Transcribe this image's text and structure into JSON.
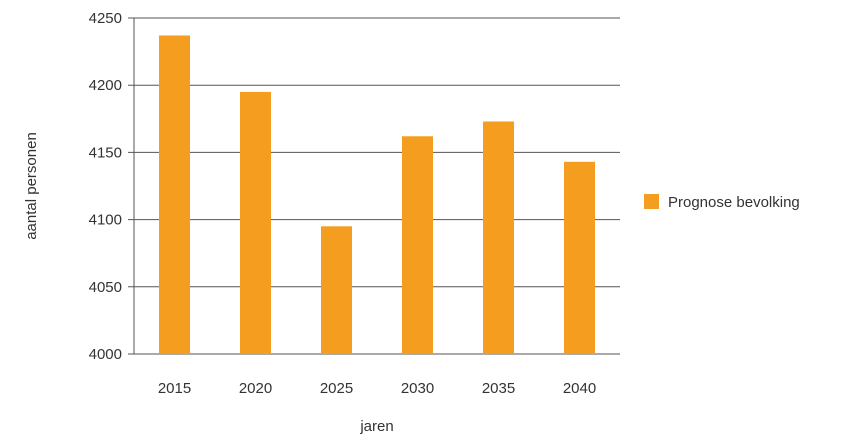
{
  "chart_data": {
    "type": "bar",
    "categories": [
      "2015",
      "2020",
      "2025",
      "2030",
      "2035",
      "2040"
    ],
    "series": [
      {
        "name": "Prognose bevolking",
        "values": [
          4237,
          4195,
          4095,
          4162,
          4173,
          4143
        ],
        "color": "#F59D1E"
      }
    ],
    "xlabel": "jaren",
    "ylabel": "aantal personen",
    "ylim": [
      4000,
      4250
    ],
    "yticks": [
      4000,
      4050,
      4100,
      4150,
      4200,
      4250
    ],
    "grid": true,
    "legend_position": "right"
  }
}
